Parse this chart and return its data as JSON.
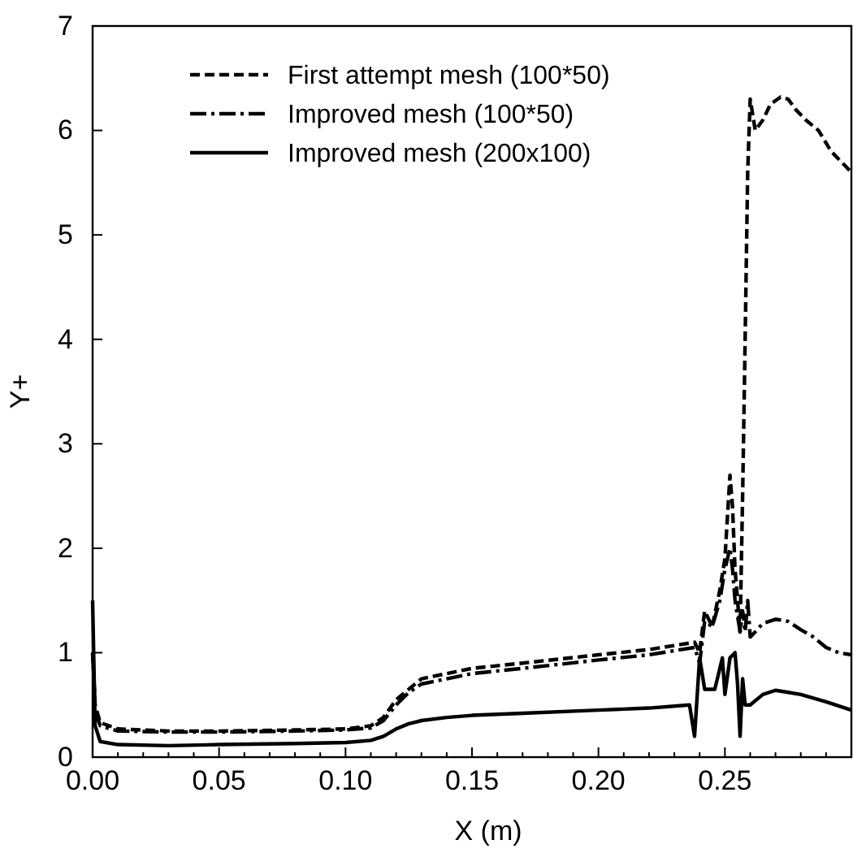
{
  "chart_data": {
    "type": "line",
    "xlabel": "X (m)",
    "ylabel": "Y+",
    "xlim": [
      0,
      0.3
    ],
    "ylim": [
      0,
      7
    ],
    "xticks": [
      {
        "value": 0,
        "label": "0.00"
      },
      {
        "value": 0.01,
        "label": null
      },
      {
        "value": 0.02,
        "label": null
      },
      {
        "value": 0.03,
        "label": null
      },
      {
        "value": 0.04,
        "label": null
      },
      {
        "value": 0.05,
        "label": "0.05"
      },
      {
        "value": 0.06,
        "label": null
      },
      {
        "value": 0.07,
        "label": null
      },
      {
        "value": 0.08,
        "label": null
      },
      {
        "value": 0.09,
        "label": null
      },
      {
        "value": 0.1,
        "label": "0.10"
      },
      {
        "value": 0.11,
        "label": null
      },
      {
        "value": 0.12,
        "label": null
      },
      {
        "value": 0.13,
        "label": null
      },
      {
        "value": 0.14,
        "label": null
      },
      {
        "value": 0.15,
        "label": "0.15"
      },
      {
        "value": 0.16,
        "label": null
      },
      {
        "value": 0.17,
        "label": null
      },
      {
        "value": 0.18,
        "label": null
      },
      {
        "value": 0.19,
        "label": null
      },
      {
        "value": 0.2,
        "label": "0.20"
      },
      {
        "value": 0.21,
        "label": null
      },
      {
        "value": 0.22,
        "label": null
      },
      {
        "value": 0.23,
        "label": null
      },
      {
        "value": 0.24,
        "label": null
      },
      {
        "value": 0.25,
        "label": "0.25"
      },
      {
        "value": 0.26,
        "label": null
      },
      {
        "value": 0.27,
        "label": null
      },
      {
        "value": 0.28,
        "label": null
      },
      {
        "value": 0.29,
        "label": null
      }
    ],
    "yticks": [
      0,
      1,
      2,
      3,
      4,
      5,
      6,
      7
    ],
    "legend": "top left",
    "grid": false,
    "marker": "none",
    "series": [
      {
        "name": "First attempt mesh (100*50)",
        "color": "#000000",
        "line_style": "dashed",
        "x": [
          0,
          0.001,
          0.003,
          0.01,
          0.03,
          0.05,
          0.08,
          0.1,
          0.11,
          0.115,
          0.12,
          0.125,
          0.13,
          0.14,
          0.15,
          0.17,
          0.2,
          0.22,
          0.238,
          0.24,
          0.242,
          0.245,
          0.248,
          0.25,
          0.252,
          0.253,
          0.254,
          0.256,
          0.257,
          0.258,
          0.259,
          0.26,
          0.262,
          0.265,
          0.268,
          0.272,
          0.275,
          0.278,
          0.282,
          0.287,
          0.292,
          0.296,
          0.3
        ],
        "values": [
          1.0,
          0.5,
          0.33,
          0.27,
          0.25,
          0.25,
          0.26,
          0.27,
          0.3,
          0.38,
          0.55,
          0.65,
          0.75,
          0.8,
          0.85,
          0.9,
          0.98,
          1.03,
          1.1,
          1.0,
          1.4,
          1.25,
          1.6,
          1.9,
          2.7,
          2.4,
          1.8,
          1.2,
          2.5,
          4.0,
          5.6,
          6.3,
          6.0,
          6.1,
          6.25,
          6.32,
          6.3,
          6.2,
          6.1,
          6.0,
          5.8,
          5.7,
          5.6
        ]
      },
      {
        "name": "Improved mesh (100*50)",
        "color": "#000000",
        "line_style": "dashdot",
        "x": [
          0,
          0.001,
          0.003,
          0.01,
          0.03,
          0.05,
          0.08,
          0.1,
          0.11,
          0.115,
          0.12,
          0.125,
          0.13,
          0.14,
          0.15,
          0.17,
          0.2,
          0.22,
          0.238,
          0.24,
          0.242,
          0.245,
          0.248,
          0.25,
          0.252,
          0.253,
          0.254,
          0.256,
          0.257,
          0.258,
          0.259,
          0.26,
          0.262,
          0.265,
          0.27,
          0.275,
          0.28,
          0.285,
          0.29,
          0.295,
          0.3
        ],
        "values": [
          1.0,
          0.45,
          0.3,
          0.25,
          0.24,
          0.24,
          0.25,
          0.26,
          0.28,
          0.35,
          0.5,
          0.62,
          0.7,
          0.75,
          0.8,
          0.85,
          0.93,
          0.98,
          1.05,
          0.9,
          1.3,
          1.25,
          1.5,
          1.8,
          2.0,
          1.8,
          1.5,
          1.2,
          1.4,
          1.2,
          1.5,
          1.15,
          1.2,
          1.28,
          1.32,
          1.3,
          1.22,
          1.15,
          1.05,
          1.0,
          0.98
        ]
      },
      {
        "name": "Improved mesh (200x100)",
        "color": "#000000",
        "line_style": "solid",
        "x": [
          0,
          0.001,
          0.003,
          0.01,
          0.03,
          0.05,
          0.08,
          0.1,
          0.11,
          0.115,
          0.12,
          0.125,
          0.13,
          0.14,
          0.15,
          0.17,
          0.2,
          0.22,
          0.236,
          0.238,
          0.24,
          0.242,
          0.246,
          0.249,
          0.25,
          0.252,
          0.254,
          0.255,
          0.256,
          0.257,
          0.258,
          0.26,
          0.265,
          0.27,
          0.275,
          0.28,
          0.29,
          0.3
        ],
        "values": [
          1.5,
          0.3,
          0.15,
          0.12,
          0.11,
          0.12,
          0.13,
          0.14,
          0.16,
          0.2,
          0.27,
          0.32,
          0.35,
          0.38,
          0.4,
          0.42,
          0.45,
          0.47,
          0.5,
          0.2,
          0.95,
          0.65,
          0.65,
          0.95,
          0.6,
          0.95,
          1.0,
          0.7,
          0.2,
          0.75,
          0.5,
          0.5,
          0.6,
          0.64,
          0.62,
          0.6,
          0.53,
          0.45
        ]
      }
    ]
  }
}
